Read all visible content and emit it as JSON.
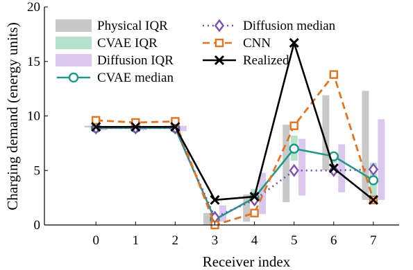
{
  "chart_data": {
    "type": "line",
    "xlabel": "Receiver index",
    "ylabel": "Charging demand (energy units)",
    "x": [
      0,
      1,
      2,
      3,
      4,
      5,
      6,
      7
    ],
    "x_ticks": [
      "0",
      "1",
      "2",
      "3",
      "4",
      "5",
      "6",
      "7"
    ],
    "xlim": [
      -1.3,
      7.65
    ],
    "ylim": [
      0,
      20
    ],
    "y_ticks": [
      "0",
      "5",
      "10",
      "15",
      "20"
    ],
    "grid": false,
    "legend_position": "top",
    "iqr_series": [
      {
        "name": "Physical IQR",
        "color": "#c8c8c8",
        "offset": -0.2,
        "low": [
          8.95,
          9.0,
          9.0,
          0.0,
          0.3,
          2.1,
          5.0,
          2.3
        ],
        "high": [
          9.1,
          9.1,
          9.1,
          1.1,
          2.8,
          9.2,
          11.9,
          12.3
        ]
      },
      {
        "name": "CVAE IQR",
        "color": "#b4e2cc",
        "offset": 0.0,
        "low": [
          8.85,
          8.9,
          8.9,
          0.2,
          2.3,
          5.9,
          5.7,
          2.6
        ],
        "high": [
          9.05,
          9.05,
          9.05,
          1.0,
          3.3,
          8.2,
          6.4,
          5.7
        ]
      },
      {
        "name": "Diffusion IQR",
        "color": "#dac8ee",
        "offset": 0.2,
        "low": [
          8.7,
          8.7,
          8.6,
          0.3,
          1.0,
          2.7,
          3.0,
          2.3
        ],
        "high": [
          9.1,
          9.1,
          9.1,
          1.8,
          4.8,
          7.9,
          7.4,
          9.7
        ]
      }
    ],
    "series": [
      {
        "name": "CVAE median",
        "color": "#1e9a83",
        "dash": "solid",
        "marker": "circle",
        "values": [
          8.9,
          8.9,
          8.9,
          0.5,
          2.5,
          7.0,
          6.3,
          4.1
        ]
      },
      {
        "name": "Diffusion median",
        "color": "#7e4fb0",
        "dash": "dotted",
        "marker": "diamond",
        "values": [
          8.9,
          8.9,
          8.9,
          0.7,
          2.3,
          5.0,
          5.0,
          5.1
        ]
      },
      {
        "name": "CNN",
        "color": "#e5731e",
        "dash": "dashed",
        "marker": "square",
        "values": [
          9.6,
          9.4,
          9.5,
          0.0,
          1.1,
          9.1,
          13.8,
          2.3
        ]
      },
      {
        "name": "Realized",
        "color": "#000000",
        "dash": "solid",
        "marker": "x",
        "values": [
          9.0,
          9.0,
          9.0,
          2.3,
          2.6,
          16.7,
          5.2,
          2.3
        ]
      }
    ]
  }
}
